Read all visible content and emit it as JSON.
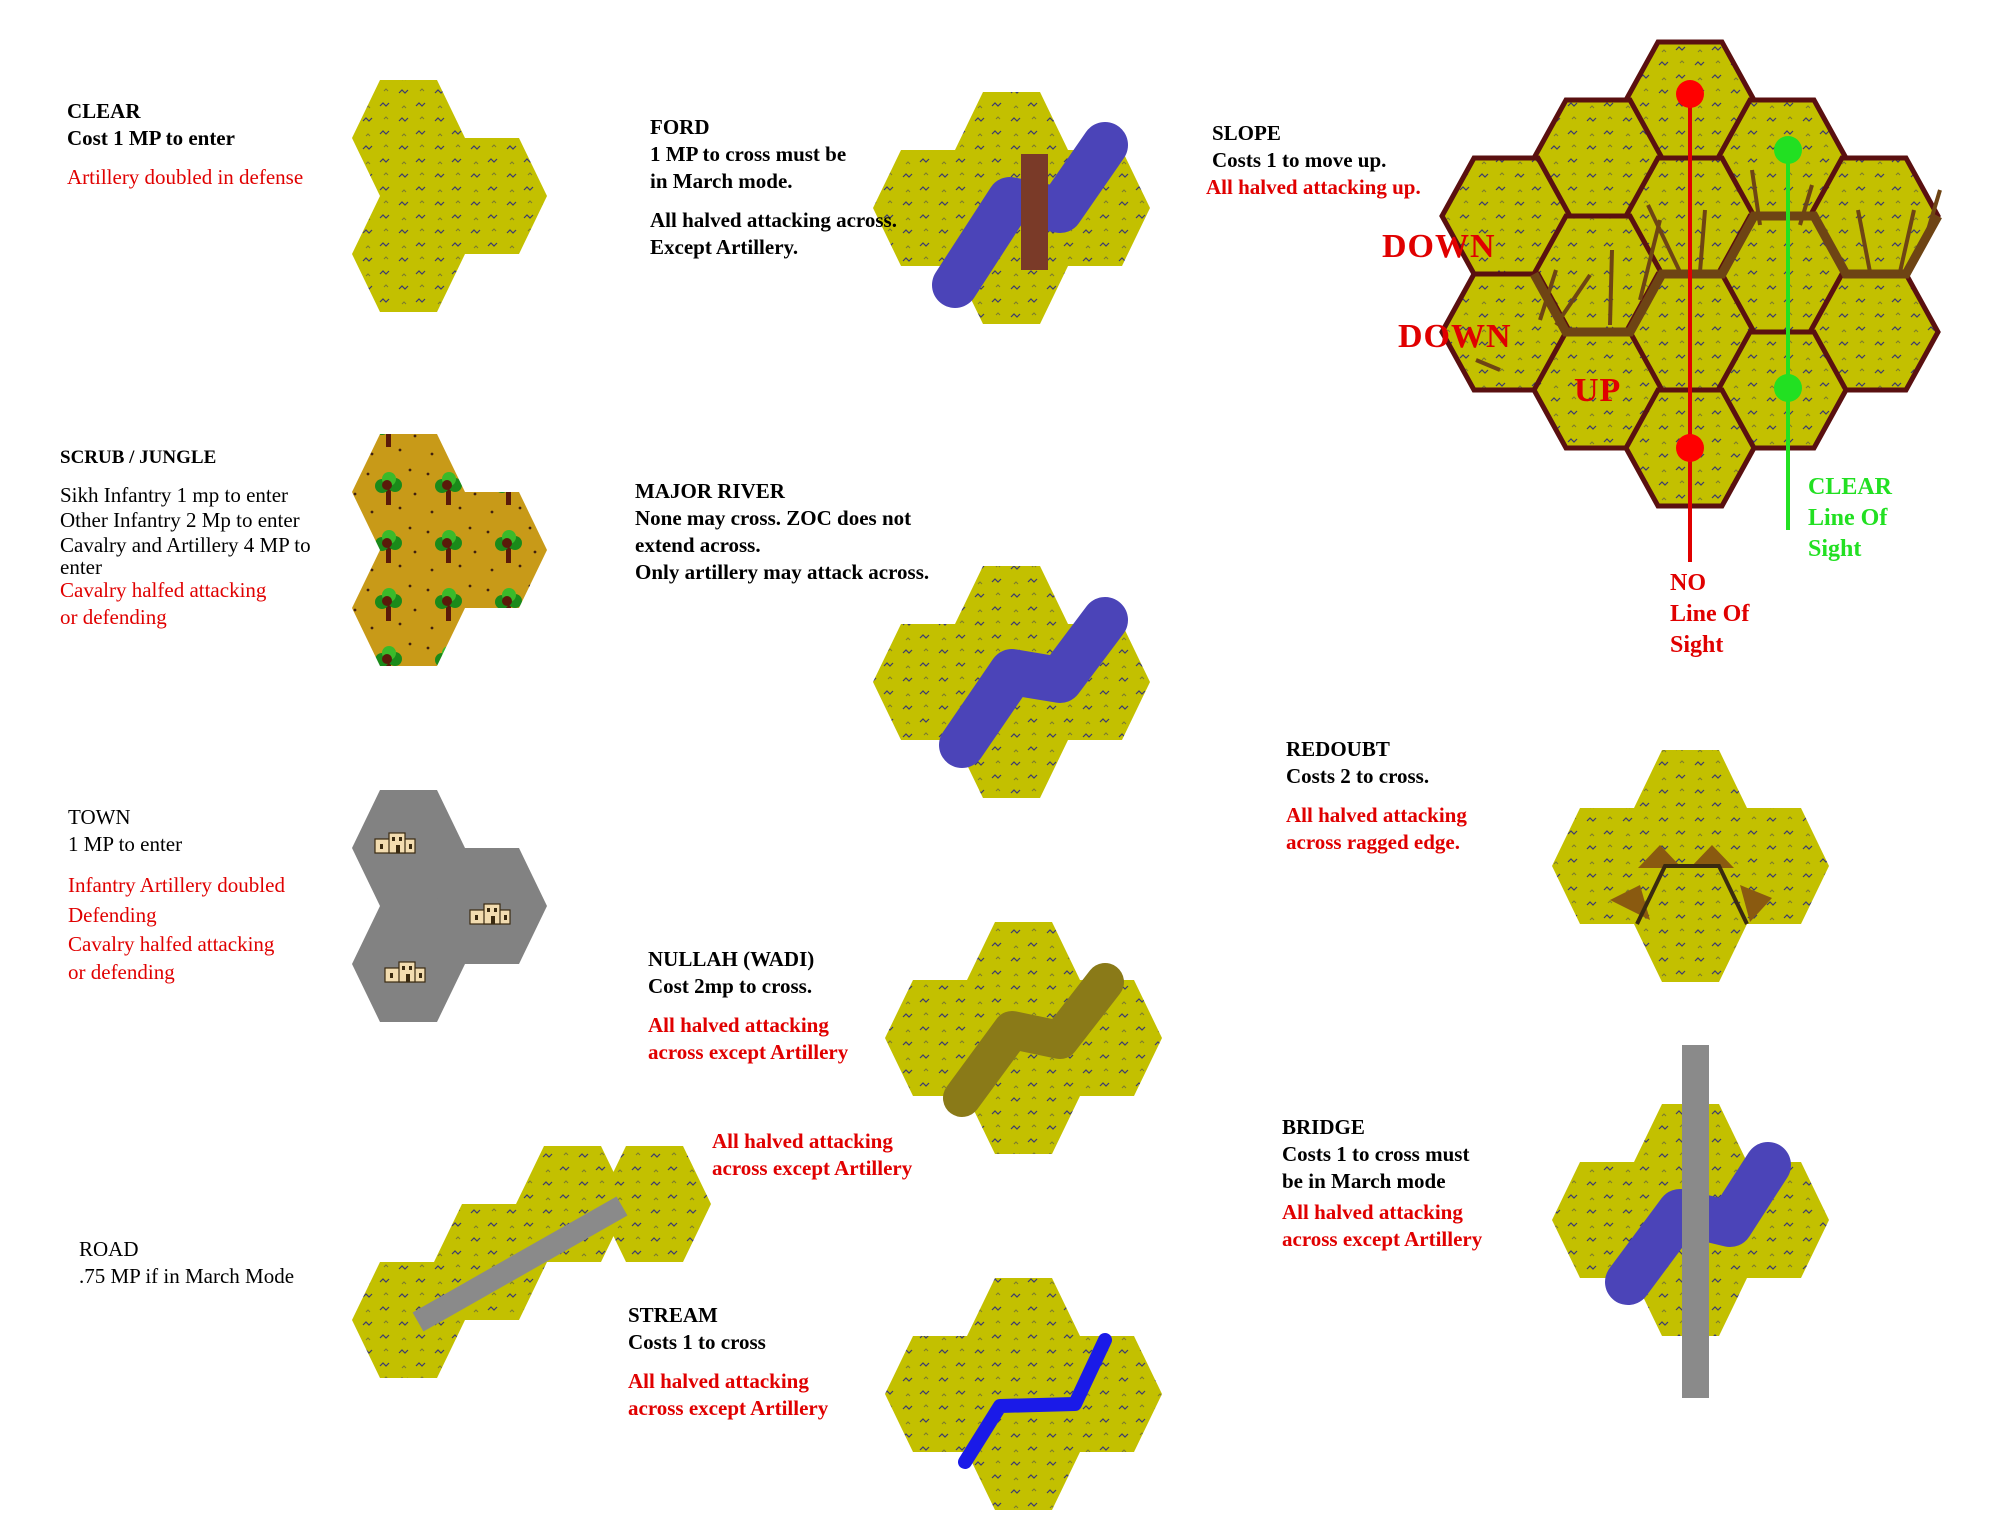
{
  "colors": {
    "grass": "#c3c000",
    "scrub": "#c89a18",
    "town": "#828282",
    "river": "#4b44b8",
    "stream": "#1a1ae8",
    "nullah": "#8a7a18",
    "ford": "#7a3a28",
    "road": "#8a8a8a",
    "slope": "#6e4414",
    "redoubt": "#8a5a10",
    "hex_border": "#5a1010",
    "red_text": "#e00000",
    "green_text": "#22e022"
  },
  "terrain": {
    "clear": {
      "title": "CLEAR",
      "cost": "Cost 1 MP to enter",
      "effect": "Artillery doubled in defense"
    },
    "scrub": {
      "title": "SCRUB / JUNGLE",
      "l1": "Sikh Infantry 1 mp to enter",
      "l2": "Other Infantry 2 Mp to enter",
      "l3a": "Cavalry and Artillery 4 MP to",
      "l3b": "enter",
      "e1": "Cavalry halfed attacking",
      "e2": "or defending"
    },
    "town": {
      "title": "TOWN",
      "cost": "1 MP to enter",
      "e1": "Infantry Artillery doubled",
      "e2": "Defending",
      "e3": "Cavalry halfed attacking",
      "e4": "or defending"
    },
    "road": {
      "title": "ROAD",
      "cost": ".75 MP if in March Mode",
      "e1": "All halved attacking",
      "e2": "across except Artillery"
    },
    "ford": {
      "title": "FORD",
      "c1": "1 MP to cross must be",
      "c2": "in March mode.",
      "e1": "All halved attacking across.",
      "e2": "Except Artillery."
    },
    "major_river": {
      "title": "MAJOR RIVER",
      "l1": "None may cross. ZOC does not",
      "l2": "extend across.",
      "l3": "Only artillery may attack across."
    },
    "nullah": {
      "title": "NULLAH (WADI)",
      "cost": "Cost 2mp to cross.",
      "e1": "All halved attacking",
      "e2": "across except Artillery"
    },
    "stream": {
      "title": "STREAM",
      "cost": "Costs 1 to cross",
      "e1": "All halved attacking",
      "e2": "across except Artillery"
    },
    "slope": {
      "title": "SLOPE",
      "cost": "Costs 1 to move up.",
      "effect": "All halved attacking up."
    },
    "redoubt": {
      "title": "REDOUBT",
      "cost": "Costs 2 to cross.",
      "e1": "All halved attacking",
      "e2": "across ragged edge."
    },
    "bridge": {
      "title": "BRIDGE",
      "c1": "Costs 1 to cross must",
      "c2": "be in March mode",
      "e1": "All halved attacking",
      "e2": "across except Artillery"
    }
  },
  "slope_diagram": {
    "down1": "DOWN",
    "down2": "DOWN",
    "up": "UP",
    "no_los": [
      "NO",
      "Line Of",
      "Sight"
    ],
    "clear_los": [
      "CLEAR",
      "Line Of",
      "Sight"
    ]
  }
}
